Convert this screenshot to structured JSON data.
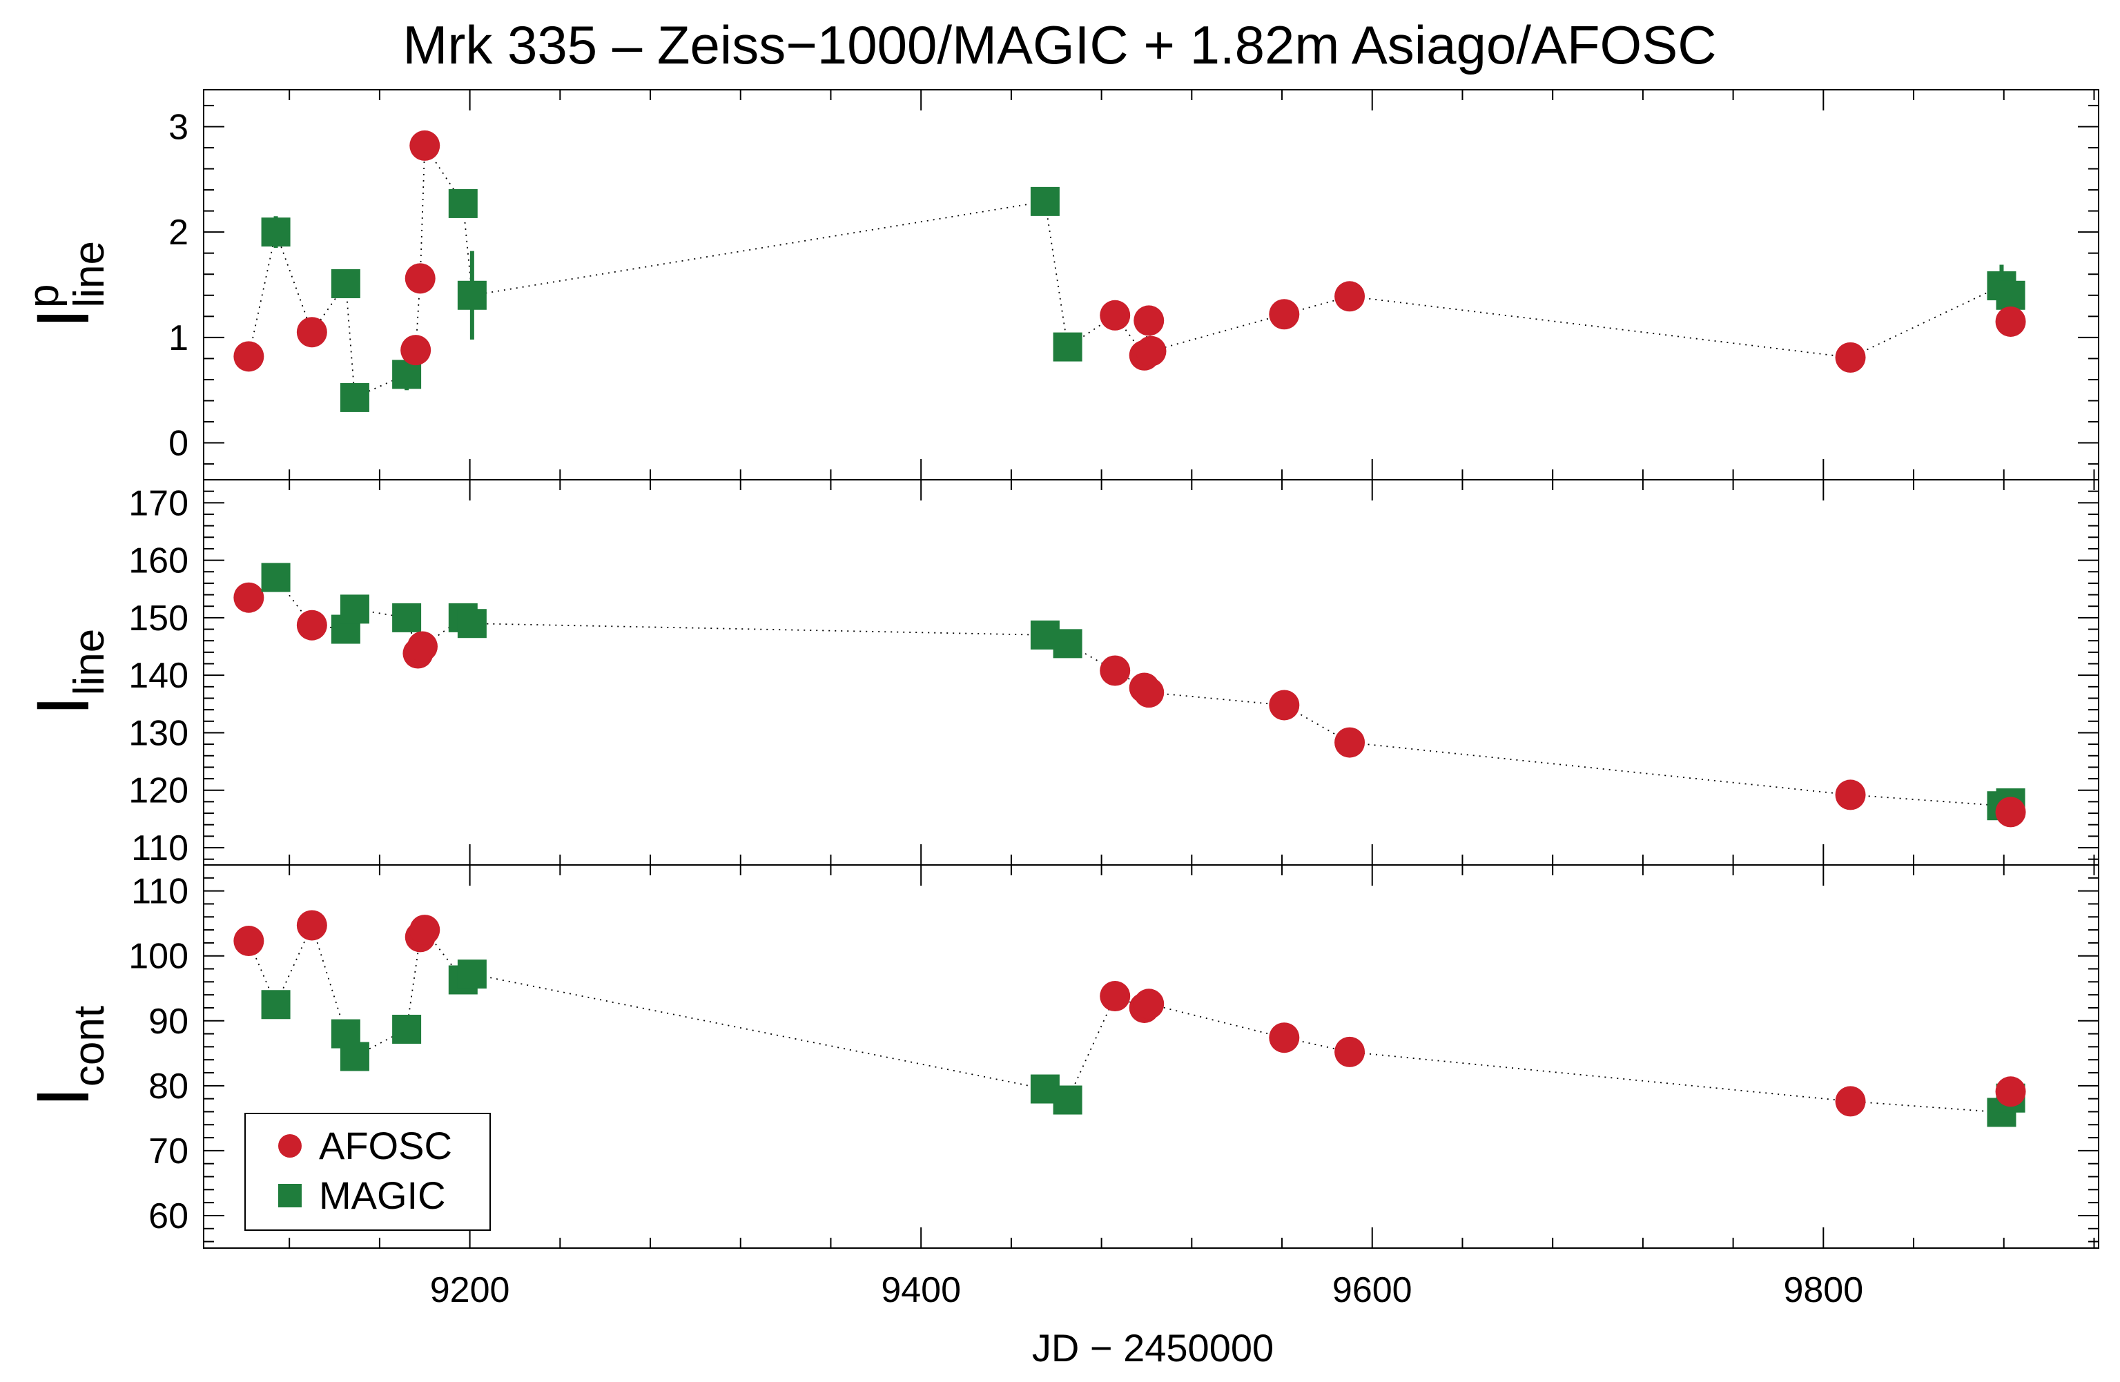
{
  "chart_data": {
    "type": "scatter",
    "title": "Mrk 335  –  Zeiss−1000/MAGIC + 1.82m Asiago/AFOSC",
    "xlabel": "JD − 2450000",
    "xlim": [
      9082,
      9922
    ],
    "xticks": [
      9200,
      9400,
      9600,
      9800
    ],
    "legend": {
      "placement": "bottom-left of lower panel",
      "entries": [
        {
          "label": "AFOSC",
          "marker": "circle",
          "color": "#cc1f2b"
        },
        {
          "label": "MAGIC",
          "marker": "square",
          "color": "#1f7d3c"
        }
      ]
    },
    "colors": {
      "afosc": "#cc1f2b",
      "magic": "#1f7d3c"
    },
    "panels": [
      {
        "ylabel_main": "I",
        "ylabel_sup": "p",
        "ylabel_sub": "line",
        "ylim": [
          -0.35,
          3.35
        ],
        "yticks": [
          0,
          1,
          2,
          3
        ],
        "minor_step": 0.2,
        "points": [
          {
            "x": 9102,
            "y": 0.82,
            "s": "AFOSC"
          },
          {
            "x": 9114,
            "y": 2.0,
            "s": "MAGIC",
            "err": 0.15
          },
          {
            "x": 9130,
            "y": 1.05,
            "s": "AFOSC"
          },
          {
            "x": 9145,
            "y": 1.51,
            "s": "MAGIC"
          },
          {
            "x": 9149,
            "y": 0.43,
            "s": "MAGIC"
          },
          {
            "x": 9172,
            "y": 0.65,
            "s": "MAGIC",
            "err": 0.15
          },
          {
            "x": 9176,
            "y": 0.88,
            "s": "AFOSC"
          },
          {
            "x": 9178,
            "y": 1.56,
            "s": "AFOSC"
          },
          {
            "x": 9180,
            "y": 2.82,
            "s": "AFOSC"
          },
          {
            "x": 9197,
            "y": 2.27,
            "s": "MAGIC"
          },
          {
            "x": 9201,
            "y": 1.4,
            "s": "MAGIC",
            "err": 0.42
          },
          {
            "x": 9455,
            "y": 2.29,
            "s": "MAGIC"
          },
          {
            "x": 9465,
            "y": 0.91,
            "s": "MAGIC"
          },
          {
            "x": 9486,
            "y": 1.21,
            "s": "AFOSC"
          },
          {
            "x": 9499,
            "y": 0.83,
            "s": "AFOSC"
          },
          {
            "x": 9501,
            "y": 1.16,
            "s": "AFOSC"
          },
          {
            "x": 9502,
            "y": 0.87,
            "s": "AFOSC"
          },
          {
            "x": 9561,
            "y": 1.22,
            "s": "AFOSC"
          },
          {
            "x": 9590,
            "y": 1.39,
            "s": "AFOSC"
          },
          {
            "x": 9812,
            "y": 0.81,
            "s": "AFOSC"
          },
          {
            "x": 9879,
            "y": 1.49,
            "s": "MAGIC",
            "err": 0.2
          },
          {
            "x": 9883,
            "y": 1.4,
            "s": "MAGIC"
          },
          {
            "x": 9883,
            "y": 1.15,
            "s": "AFOSC"
          }
        ]
      },
      {
        "ylabel_main": "I",
        "ylabel_sup": "",
        "ylabel_sub": "line",
        "ylim": [
          107,
          174
        ],
        "yticks": [
          110,
          120,
          130,
          140,
          150,
          160,
          170
        ],
        "minor_step": 2,
        "points": [
          {
            "x": 9102,
            "y": 153.5,
            "s": "AFOSC"
          },
          {
            "x": 9114,
            "y": 157.0,
            "s": "MAGIC"
          },
          {
            "x": 9130,
            "y": 148.7,
            "s": "AFOSC"
          },
          {
            "x": 9145,
            "y": 148.0,
            "s": "MAGIC"
          },
          {
            "x": 9149,
            "y": 151.5,
            "s": "MAGIC"
          },
          {
            "x": 9172,
            "y": 150.0,
            "s": "MAGIC"
          },
          {
            "x": 9177,
            "y": 143.8,
            "s": "AFOSC"
          },
          {
            "x": 9179,
            "y": 145.0,
            "s": "AFOSC"
          },
          {
            "x": 9197,
            "y": 150.0,
            "s": "MAGIC"
          },
          {
            "x": 9201,
            "y": 149.0,
            "s": "MAGIC"
          },
          {
            "x": 9455,
            "y": 147.0,
            "s": "MAGIC"
          },
          {
            "x": 9465,
            "y": 145.5,
            "s": "MAGIC"
          },
          {
            "x": 9486,
            "y": 140.8,
            "s": "AFOSC"
          },
          {
            "x": 9499,
            "y": 137.8,
            "s": "AFOSC"
          },
          {
            "x": 9501,
            "y": 137.0,
            "s": "AFOSC"
          },
          {
            "x": 9561,
            "y": 134.8,
            "s": "AFOSC"
          },
          {
            "x": 9590,
            "y": 128.3,
            "s": "AFOSC"
          },
          {
            "x": 9812,
            "y": 119.2,
            "s": "AFOSC"
          },
          {
            "x": 9879,
            "y": 117.3,
            "s": "MAGIC"
          },
          {
            "x": 9883,
            "y": 117.8,
            "s": "MAGIC"
          },
          {
            "x": 9883,
            "y": 116.2,
            "s": "AFOSC"
          }
        ]
      },
      {
        "ylabel_main": "I",
        "ylabel_sup": "",
        "ylabel_sub": "cont",
        "ylim": [
          55,
          114
        ],
        "yticks": [
          60,
          70,
          80,
          90,
          100,
          110
        ],
        "minor_step": 2,
        "points": [
          {
            "x": 9102,
            "y": 102.3,
            "s": "AFOSC"
          },
          {
            "x": 9114,
            "y": 92.5,
            "s": "MAGIC"
          },
          {
            "x": 9130,
            "y": 104.7,
            "s": "AFOSC"
          },
          {
            "x": 9145,
            "y": 88.0,
            "s": "MAGIC"
          },
          {
            "x": 9149,
            "y": 84.5,
            "s": "MAGIC"
          },
          {
            "x": 9172,
            "y": 88.7,
            "s": "MAGIC"
          },
          {
            "x": 9178,
            "y": 102.9,
            "s": "AFOSC"
          },
          {
            "x": 9180,
            "y": 104.0,
            "s": "AFOSC"
          },
          {
            "x": 9197,
            "y": 96.3,
            "s": "MAGIC"
          },
          {
            "x": 9201,
            "y": 97.2,
            "s": "MAGIC"
          },
          {
            "x": 9455,
            "y": 79.5,
            "s": "MAGIC"
          },
          {
            "x": 9465,
            "y": 77.8,
            "s": "MAGIC"
          },
          {
            "x": 9486,
            "y": 93.8,
            "s": "AFOSC"
          },
          {
            "x": 9499,
            "y": 92.0,
            "s": "AFOSC"
          },
          {
            "x": 9501,
            "y": 92.6,
            "s": "AFOSC"
          },
          {
            "x": 9561,
            "y": 87.4,
            "s": "AFOSC"
          },
          {
            "x": 9590,
            "y": 85.2,
            "s": "AFOSC"
          },
          {
            "x": 9812,
            "y": 77.6,
            "s": "AFOSC"
          },
          {
            "x": 9879,
            "y": 75.9,
            "s": "MAGIC"
          },
          {
            "x": 9883,
            "y": 78.1,
            "s": "MAGIC"
          },
          {
            "x": 9883,
            "y": 79.1,
            "s": "AFOSC"
          }
        ]
      }
    ]
  }
}
